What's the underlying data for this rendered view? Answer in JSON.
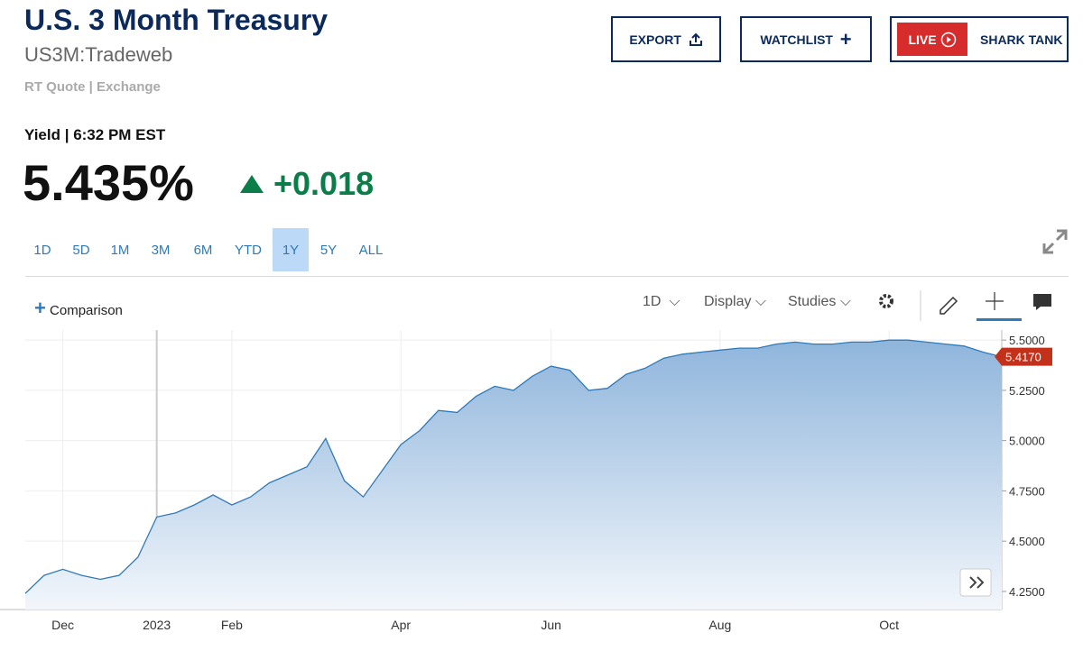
{
  "header": {
    "title": "U.S. 3 Month Treasury",
    "symbol": "US3M:Tradeweb",
    "quote_info": "RT Quote | Exchange"
  },
  "buttons": {
    "export": "EXPORT",
    "watchlist": "WATCHLIST",
    "live": "LIVE",
    "live_show": "SHARK TANK"
  },
  "quote": {
    "label": "Yield | 6:32 PM EST",
    "price": "5.435%",
    "change": "+0.018"
  },
  "ranges": [
    "1D",
    "5D",
    "1M",
    "3M",
    "6M",
    "YTD",
    "1Y",
    "5Y",
    "ALL"
  ],
  "selected_range": "1Y",
  "toolbar": {
    "comparison": "Comparison",
    "interval": "1D",
    "display": "Display",
    "studies": "Studies"
  },
  "chart_data": {
    "type": "area",
    "categories": [
      null,
      null,
      "Dec",
      null,
      null,
      null,
      null,
      "2023",
      null,
      null,
      null,
      "Feb",
      null,
      null,
      null,
      null,
      null,
      null,
      null,
      null,
      "Apr",
      null,
      null,
      null,
      null,
      null,
      null,
      null,
      "Jun",
      null,
      null,
      null,
      null,
      null,
      null,
      null,
      null,
      "Aug",
      null,
      null,
      null,
      null,
      null,
      null,
      null,
      null,
      "Oct",
      null,
      null,
      null,
      null,
      null,
      null
    ],
    "values": [
      4.24,
      4.33,
      4.36,
      4.33,
      4.31,
      4.33,
      4.42,
      4.62,
      4.64,
      4.68,
      4.73,
      4.68,
      4.72,
      4.79,
      4.83,
      4.87,
      5.01,
      4.8,
      4.72,
      4.85,
      4.98,
      5.05,
      5.15,
      5.14,
      5.22,
      5.27,
      5.25,
      5.32,
      5.37,
      5.35,
      5.25,
      5.26,
      5.33,
      5.36,
      5.41,
      5.43,
      5.44,
      5.45,
      5.46,
      5.46,
      5.48,
      5.49,
      5.48,
      5.48,
      5.49,
      5.49,
      5.5,
      5.5,
      5.49,
      5.48,
      5.47,
      5.44,
      5.417
    ],
    "value_labels": [
      null,
      null,
      null,
      null,
      null,
      null,
      null,
      null,
      null,
      null,
      null,
      null,
      null,
      null,
      null,
      null,
      null,
      null,
      null,
      null,
      null,
      null,
      null,
      null,
      null,
      null,
      null,
      null,
      null,
      null,
      null,
      null,
      null,
      null,
      null,
      null,
      null,
      null,
      null,
      null,
      null,
      null,
      null,
      null,
      null,
      null,
      null,
      null,
      null,
      null,
      null,
      null,
      "5.4170"
    ],
    "color": "#2f7ab8",
    "ylim": [
      4.16,
      5.55
    ],
    "yticks": [
      {
        "value": 4.25,
        "label": "4.2500"
      },
      {
        "value": 4.5,
        "label": "4.5000"
      },
      {
        "value": 4.75,
        "label": "4.7500"
      },
      {
        "value": 5,
        "label": "5.0000"
      },
      {
        "value": 5.25,
        "label": "5.2500"
      },
      {
        "value": 5.5,
        "label": "5.5000"
      }
    ],
    "grid": true
  }
}
